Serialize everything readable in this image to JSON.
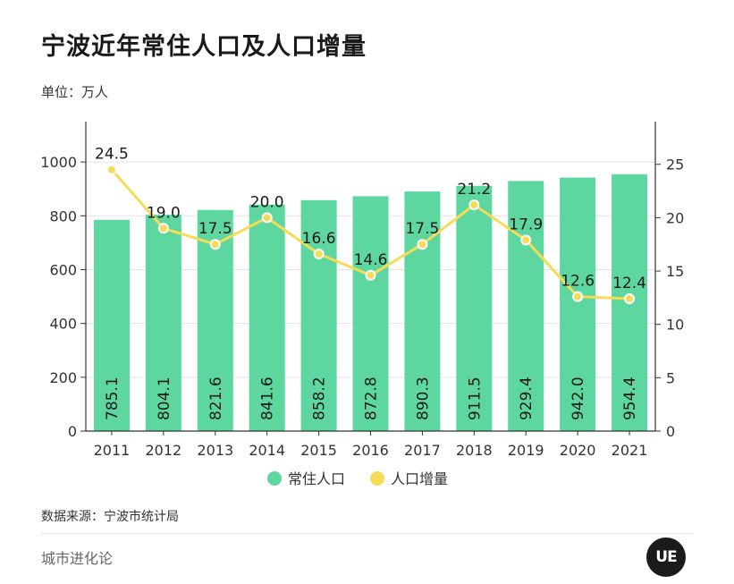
{
  "header": {
    "title": "宁波近年常住人口及人口增量",
    "unit": "单位：万人"
  },
  "footer": {
    "source": "数据来源：宁波市统计局",
    "brand": "城市进化论",
    "logo_text": "UE"
  },
  "colors": {
    "bar": "#5dd6a0",
    "line": "#f4dc57",
    "grid": "#e3e3e3",
    "axis": "#333333"
  },
  "chart_data": {
    "type": "bar",
    "categories": [
      "2011",
      "2012",
      "2013",
      "2014",
      "2015",
      "2016",
      "2017",
      "2018",
      "2019",
      "2020",
      "2021"
    ],
    "series": [
      {
        "name": "常住人口",
        "type": "bar",
        "axis": "left",
        "values": [
          785.1,
          804.1,
          821.6,
          841.6,
          858.2,
          872.8,
          890.3,
          911.5,
          929.4,
          942.0,
          954.4
        ],
        "labels": [
          "785.1",
          "804.1",
          "821.6",
          "841.6",
          "858.2",
          "872.8",
          "890.3",
          "911.5",
          "929.4",
          "942.0",
          "954.4"
        ]
      },
      {
        "name": "人口增量",
        "type": "line",
        "axis": "right",
        "values": [
          24.5,
          19.0,
          17.5,
          20.0,
          16.6,
          14.6,
          17.5,
          21.2,
          17.9,
          12.6,
          12.4
        ],
        "labels": [
          "24.5",
          "19.0",
          "17.5",
          "20.0",
          "16.6",
          "14.6",
          "17.5",
          "21.2",
          "17.9",
          "12.6",
          "12.4"
        ]
      }
    ],
    "y_left": {
      "ylim": [
        0,
        1150
      ],
      "ticks": [
        "0",
        "200",
        "400",
        "600",
        "800",
        "1000"
      ]
    },
    "y_right": {
      "ylim": [
        0,
        29
      ],
      "ticks": [
        "0",
        "5",
        "10",
        "15",
        "20",
        "25"
      ]
    },
    "grid": true,
    "legend_position": "bottom"
  }
}
